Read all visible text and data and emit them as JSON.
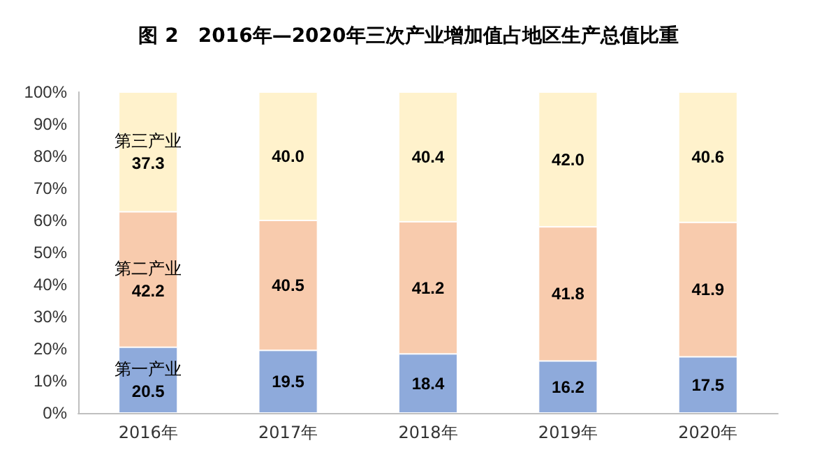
{
  "chart_data": {
    "type": "bar",
    "title": "图 2　2016年—2020年三次产业增加值占地区生产总值比重",
    "stacked": true,
    "grid": false,
    "legend": false,
    "categories": [
      "2016年",
      "2017年",
      "2018年",
      "2019年",
      "2020年"
    ],
    "series": [
      {
        "name": "第一产业",
        "color": "#8eaadb",
        "values": [
          20.5,
          19.5,
          18.4,
          16.2,
          17.5
        ],
        "value_labels": [
          "20.5",
          "19.5",
          "18.4",
          "16.2",
          "17.5"
        ]
      },
      {
        "name": "第二产业",
        "color": "#f8cbad",
        "values": [
          42.2,
          40.5,
          41.2,
          41.8,
          41.9
        ],
        "value_labels": [
          "42.2",
          "40.5",
          "41.2",
          "41.8",
          "41.9"
        ]
      },
      {
        "name": "第三产业",
        "color": "#fff2cc",
        "values": [
          37.3,
          40.0,
          40.4,
          42.0,
          40.6
        ],
        "value_labels": [
          "37.3",
          "40.0",
          "40.4",
          "42.0",
          "40.6"
        ]
      }
    ],
    "ylim": [
      0,
      100
    ],
    "yticks": [
      {
        "value": 0,
        "label": "0%"
      },
      {
        "value": 10,
        "label": "10%"
      },
      {
        "value": 20,
        "label": "20%"
      },
      {
        "value": 30,
        "label": "30%"
      },
      {
        "value": 40,
        "label": "40%"
      },
      {
        "value": 50,
        "label": "50%"
      },
      {
        "value": 60,
        "label": "60%"
      },
      {
        "value": 70,
        "label": "70%"
      },
      {
        "value": 80,
        "label": "80%"
      },
      {
        "value": 90,
        "label": "90%"
      },
      {
        "value": 100,
        "label": "100%"
      }
    ]
  }
}
